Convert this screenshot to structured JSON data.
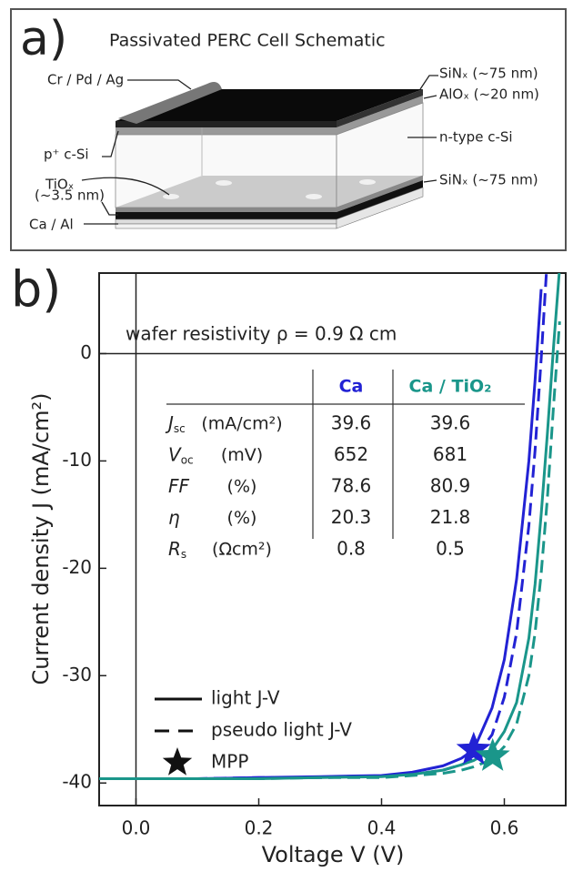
{
  "panel_a": {
    "label": "a)",
    "title": "Passivated PERC Cell Schematic",
    "labels": [
      "Cr / Pd / Ag",
      "p⁺ c-Si",
      "TiOₓ",
      "(~3.5 nm)",
      "Ca / Al",
      "SiNₓ (~75 nm)",
      "AlOₓ (~20 nm)",
      "n-type c-Si",
      "SiNₓ (~75 nm)"
    ]
  },
  "chart_data": {
    "type": "line",
    "panel_label": "b)",
    "annotation": "wafer resistivity ρ = 0.9 Ω cm",
    "xlabel": "Voltage V (V)",
    "ylabel": "Current density J (mA/cm²)",
    "xlim": [
      -0.06,
      0.7
    ],
    "ylim": [
      -42.1,
      7.5
    ],
    "xticks": [
      {
        "value": 0,
        "label": "0.0"
      },
      0.2,
      0.4,
      0.6
    ],
    "yticks": [
      0,
      -10,
      -20,
      -30,
      -40
    ],
    "x": [
      -0.06,
      0,
      0.1,
      0.2,
      0.3,
      0.4,
      0.45,
      0.5,
      0.53,
      0.55,
      0.58,
      0.6,
      0.62,
      0.64,
      0.65,
      0.66,
      0.67,
      0.68,
      0.69,
      0.7
    ],
    "series": [
      {
        "color": "#2222d4",
        "style": "solid",
        "values": [
          -39.6,
          -39.6,
          -39.6,
          -39.5,
          -39.4,
          -39.3,
          -39.0,
          -38.4,
          -37.7,
          -36.9,
          -33.0,
          -28.5,
          -21.0,
          -10.0,
          -2.5,
          6.0,
          null,
          null,
          null,
          null
        ]
      },
      {
        "color": "#2222d4",
        "style": "dashed",
        "values": [
          -39.6,
          -39.6,
          -39.6,
          -39.5,
          -39.5,
          -39.4,
          -39.2,
          -38.8,
          -38.3,
          -37.8,
          -35.5,
          -32.0,
          -26.0,
          -16.0,
          -9.0,
          -0.5,
          9.0,
          null,
          null,
          null
        ]
      },
      {
        "color": "#1a968a",
        "style": "solid",
        "values": [
          -39.6,
          -39.6,
          -39.6,
          -39.6,
          -39.5,
          -39.4,
          -39.2,
          -38.8,
          -38.3,
          -37.9,
          -36.9,
          -35.2,
          -32.5,
          -26.5,
          -21.5,
          -15.0,
          -7.5,
          0.5,
          8.0,
          null
        ]
      },
      {
        "color": "#1a968a",
        "style": "dashed",
        "values": [
          -39.6,
          -39.6,
          -39.6,
          -39.6,
          -39.5,
          -39.5,
          -39.3,
          -39.1,
          -38.8,
          -38.5,
          -37.8,
          -36.6,
          -34.5,
          -30.0,
          -26.0,
          -20.5,
          -13.5,
          -5.0,
          3.0,
          null
        ]
      }
    ],
    "mpp": [
      {
        "x": 0.55,
        "y": -36.9,
        "color": "#2222d4"
      },
      {
        "x": 0.581,
        "y": -37.5,
        "color": "#1a968a"
      }
    ],
    "legend": [
      {
        "label": "light J-V",
        "style": "solid"
      },
      {
        "label": "pseudo light J-V",
        "style": "dashed"
      },
      {
        "label": "MPP",
        "style": "star"
      }
    ],
    "table": {
      "headers": [
        {
          "text": "Ca",
          "color": "#2222d4"
        },
        {
          "text": "Ca / TiO₂",
          "color": "#1a968a"
        }
      ],
      "rows": [
        {
          "symbol": "J",
          "sub": "sc",
          "unit": "(mA/cm²)",
          "values": [
            39.6,
            39.6
          ]
        },
        {
          "symbol": "V",
          "sub": "oc",
          "unit": "(mV)",
          "values": [
            652,
            681
          ]
        },
        {
          "symbol": "FF",
          "unit": "(%)",
          "values": [
            78.6,
            80.9
          ]
        },
        {
          "symbol": "η",
          "unit": "(%)",
          "values": [
            20.3,
            21.8
          ]
        },
        {
          "symbol": "R",
          "sub": "s",
          "unit": "(Ωcm²)",
          "values": [
            0.8,
            0.5
          ]
        }
      ]
    }
  }
}
